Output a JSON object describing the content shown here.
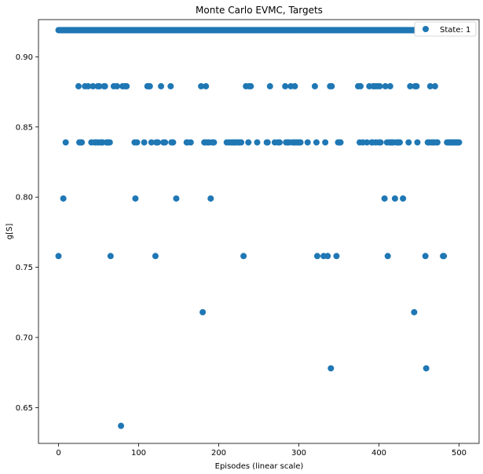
{
  "chart_data": {
    "type": "scatter",
    "title": "Monte Carlo EVMC, Targets",
    "xlabel": "Episodes (linear scale)",
    "ylabel": "g[S]",
    "xlim": [
      -25,
      525
    ],
    "ylim": [
      0.6245,
      0.9265
    ],
    "xticks": [
      0,
      100,
      200,
      300,
      400,
      500
    ],
    "yticks": [
      0.65,
      0.7,
      0.75,
      0.8,
      0.85,
      0.9
    ],
    "grid": false,
    "legend_position": "top-right",
    "colors": {
      "series": "#1f77b4"
    },
    "series": [
      {
        "name": "State: 1",
        "x": [
          0,
          6,
          9,
          25,
          26,
          28,
          29,
          33,
          37,
          41,
          43,
          45,
          47,
          49,
          50,
          51,
          53,
          54,
          55,
          57,
          58,
          60,
          61,
          62,
          64,
          65,
          69,
          73,
          78,
          80,
          83,
          85,
          95,
          96,
          98,
          107,
          111,
          113,
          114,
          116,
          121,
          122,
          124,
          128,
          131,
          133,
          140,
          141,
          143,
          147,
          160,
          161,
          165,
          178,
          180,
          182,
          183,
          184,
          186,
          188,
          190,
          192,
          194,
          210,
          213,
          216,
          218,
          220,
          221,
          224,
          226,
          228,
          231,
          234,
          237,
          238,
          240,
          248,
          260,
          261,
          264,
          270,
          274,
          276,
          283,
          284,
          286,
          288,
          290,
          292,
          294,
          295,
          296,
          298,
          300,
          302,
          311,
          320,
          322,
          323,
          331,
          333,
          336,
          339,
          340,
          341,
          347,
          349,
          351,
          352,
          374,
          376,
          377,
          380,
          385,
          388,
          391,
          392,
          393,
          395,
          396,
          398,
          400,
          401,
          402,
          407,
          408,
          410,
          411,
          413,
          414,
          415,
          416,
          417,
          418,
          420,
          422,
          423,
          425,
          426,
          430,
          437,
          439,
          444,
          445,
          447,
          448,
          458,
          459,
          461,
          463,
          464,
          466,
          468,
          469,
          470,
          472,
          473,
          480,
          481,
          485,
          487,
          489,
          490,
          491,
          492,
          494,
          495,
          496,
          497,
          498,
          499,
          500
        ],
        "y": [
          0.758,
          0.799,
          0.839,
          0.879,
          0.839,
          0.839,
          0.839,
          0.879,
          0.879,
          0.839,
          0.879,
          0.839,
          0.839,
          0.879,
          0.839,
          0.879,
          0.839,
          0.839,
          0.839,
          0.879,
          0.879,
          0.839,
          0.839,
          0.839,
          0.839,
          0.758,
          0.879,
          0.879,
          0.637,
          0.879,
          0.879,
          0.879,
          0.839,
          0.799,
          0.839,
          0.839,
          0.879,
          0.879,
          0.879,
          0.839,
          0.758,
          0.839,
          0.839,
          0.879,
          0.839,
          0.839,
          0.879,
          0.839,
          0.839,
          0.799,
          0.839,
          0.839,
          0.839,
          0.879,
          0.718,
          0.839,
          0.839,
          0.879,
          0.839,
          0.839,
          0.799,
          0.839,
          0.839,
          0.839,
          0.839,
          0.839,
          0.839,
          0.839,
          0.839,
          0.839,
          0.839,
          0.839,
          0.758,
          0.879,
          0.839,
          0.879,
          0.879,
          0.839,
          0.839,
          0.839,
          0.879,
          0.839,
          0.839,
          0.839,
          0.879,
          0.839,
          0.839,
          0.839,
          0.879,
          0.839,
          0.839,
          0.879,
          0.839,
          0.839,
          0.839,
          0.839,
          0.839,
          0.879,
          0.839,
          0.758,
          0.758,
          0.839,
          0.758,
          0.879,
          0.678,
          0.879,
          0.758,
          0.839,
          0.839,
          0.839,
          0.879,
          0.839,
          0.879,
          0.839,
          0.839,
          0.879,
          0.839,
          0.839,
          0.879,
          0.879,
          0.839,
          0.879,
          0.839,
          0.879,
          0.839,
          0.799,
          0.879,
          0.839,
          0.758,
          0.839,
          0.879,
          0.839,
          0.839,
          0.839,
          0.839,
          0.799,
          0.839,
          0.839,
          0.839,
          0.839,
          0.799,
          0.839,
          0.879,
          0.718,
          0.879,
          0.879,
          0.839,
          0.758,
          0.678,
          0.839,
          0.839,
          0.879,
          0.839,
          0.839,
          0.839,
          0.879,
          0.839,
          0.839,
          0.758,
          0.758,
          0.839,
          0.839,
          0.839,
          0.839,
          0.839,
          0.839,
          0.839,
          0.839,
          0.839,
          0.839,
          0.839,
          0.839,
          0.839
        ],
        "baseline_y": 0.919,
        "baseline_x_range": [
          0,
          500
        ]
      }
    ]
  }
}
